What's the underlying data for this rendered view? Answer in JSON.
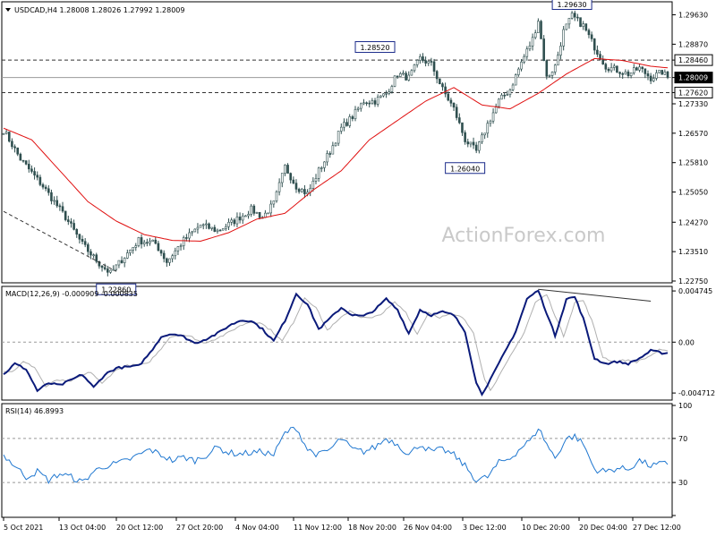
{
  "header": {
    "symbol_line": "USDCAD,H4  1.28008 1.28026 1.27992 1.28009",
    "macd_line": "MACD(12,26,9) -0.000909 -0.000835",
    "rsi_line": "RSI(14) 46.8993"
  },
  "watermark": "ActionForex.com",
  "colors": {
    "candle": "#2f4f4f",
    "ma": "#e01010",
    "macd": "#0a1a7a",
    "signal": "#b0b0b0",
    "grid_dash": "#808080",
    "axis": "#000000"
  },
  "chart_data": [
    {
      "type": "candlestick",
      "name": "price",
      "ylim": [
        1.2275,
        1.2992
      ],
      "y_ticks": [
        "1.29630",
        "1.28870",
        "1.28460",
        "1.28009",
        "1.27620",
        "1.27330",
        "1.26570",
        "1.25810",
        "1.25050",
        "1.24270",
        "1.23510",
        "1.22750"
      ],
      "current_price": "1.28009",
      "levels": [
        {
          "label": "1.28460",
          "value": 1.2846
        },
        {
          "label": "1.27620",
          "value": 1.2762
        }
      ],
      "annotations": [
        {
          "label": "1.22860",
          "value": 1.2286
        },
        {
          "label": "1.28520",
          "value": 1.2852
        },
        {
          "label": "1.26040",
          "value": 1.2604
        },
        {
          "label": "1.29630",
          "value": 1.2963
        }
      ],
      "anchors": [
        [
          0,
          1.2665
        ],
        [
          6,
          1.259
        ],
        [
          14,
          1.252
        ],
        [
          22,
          1.244
        ],
        [
          28,
          1.237
        ],
        [
          34,
          1.232
        ],
        [
          38,
          1.2295
        ],
        [
          42,
          1.233
        ],
        [
          48,
          1.238
        ],
        [
          54,
          1.2372
        ],
        [
          58,
          1.2325
        ],
        [
          64,
          1.238
        ],
        [
          70,
          1.242
        ],
        [
          76,
          1.2405
        ],
        [
          82,
          1.243
        ],
        [
          88,
          1.246
        ],
        [
          92,
          1.244
        ],
        [
          96,
          1.2475
        ],
        [
          100,
          1.257
        ],
        [
          104,
          1.252
        ],
        [
          108,
          1.25
        ],
        [
          112,
          1.256
        ],
        [
          116,
          1.261
        ],
        [
          120,
          1.267
        ],
        [
          124,
          1.27
        ],
        [
          128,
          1.274
        ],
        [
          132,
          1.274
        ],
        [
          136,
          1.276
        ],
        [
          140,
          1.281
        ],
        [
          144,
          1.28
        ],
        [
          148,
          1.285
        ],
        [
          152,
          1.2835
        ],
        [
          156,
          1.277
        ],
        [
          160,
          1.272
        ],
        [
          164,
          1.264
        ],
        [
          168,
          1.261
        ],
        [
          172,
          1.268
        ],
        [
          176,
          1.274
        ],
        [
          180,
          1.277
        ],
        [
          184,
          1.284
        ],
        [
          188,
          1.29
        ],
        [
          190,
          1.295
        ],
        [
          193,
          1.28
        ],
        [
          196,
          1.283
        ],
        [
          199,
          1.292
        ],
        [
          202,
          1.296
        ],
        [
          206,
          1.2935
        ],
        [
          210,
          1.288
        ],
        [
          214,
          1.283
        ],
        [
          218,
          1.282
        ],
        [
          222,
          1.281
        ],
        [
          226,
          1.2825
        ],
        [
          230,
          1.28
        ],
        [
          234,
          1.2815
        ],
        [
          236,
          1.2801
        ]
      ],
      "ma_anchors": [
        [
          0,
          1.267
        ],
        [
          10,
          1.264
        ],
        [
          20,
          1.256
        ],
        [
          30,
          1.248
        ],
        [
          40,
          1.243
        ],
        [
          50,
          1.2395
        ],
        [
          60,
          1.238
        ],
        [
          70,
          1.2378
        ],
        [
          80,
          1.24
        ],
        [
          90,
          1.2435
        ],
        [
          100,
          1.245
        ],
        [
          110,
          1.251
        ],
        [
          120,
          1.256
        ],
        [
          130,
          1.264
        ],
        [
          140,
          1.269
        ],
        [
          150,
          1.274
        ],
        [
          160,
          1.2775
        ],
        [
          170,
          1.273
        ],
        [
          180,
          1.272
        ],
        [
          190,
          1.276
        ],
        [
          200,
          1.281
        ],
        [
          210,
          1.285
        ],
        [
          220,
          1.2845
        ],
        [
          230,
          1.283
        ],
        [
          236,
          1.2826
        ]
      ],
      "trendline": {
        "from": [
          0,
          1.2455
        ],
        "to": [
          40,
          1.23
        ]
      }
    },
    {
      "type": "line",
      "name": "MACD(12,26,9)",
      "ylim": [
        -0.0052,
        0.005
      ],
      "y_ticks": [
        "0.004745",
        "0.00",
        "-0.004712"
      ],
      "macd_anchors": [
        [
          0,
          -0.003
        ],
        [
          4,
          -0.002
        ],
        [
          8,
          -0.0025
        ],
        [
          12,
          -0.0045
        ],
        [
          16,
          -0.0038
        ],
        [
          20,
          -0.004
        ],
        [
          24,
          -0.0035
        ],
        [
          28,
          -0.003
        ],
        [
          32,
          -0.0042
        ],
        [
          36,
          -0.003
        ],
        [
          40,
          -0.0024
        ],
        [
          44,
          -0.0023
        ],
        [
          48,
          -0.0022
        ],
        [
          52,
          -0.001
        ],
        [
          56,
          0.0005
        ],
        [
          60,
          0.0008
        ],
        [
          64,
          0.0005
        ],
        [
          68,
          -0.0001
        ],
        [
          72,
          0.0003
        ],
        [
          76,
          0.0008
        ],
        [
          80,
          0.0015
        ],
        [
          84,
          0.002
        ],
        [
          88,
          0.002
        ],
        [
          92,
          0.0012
        ],
        [
          96,
          0.0001
        ],
        [
          100,
          0.002
        ],
        [
          104,
          0.0045
        ],
        [
          108,
          0.0035
        ],
        [
          112,
          0.0012
        ],
        [
          116,
          0.0022
        ],
        [
          120,
          0.0032
        ],
        [
          124,
          0.0025
        ],
        [
          128,
          0.0024
        ],
        [
          132,
          0.003
        ],
        [
          136,
          0.004
        ],
        [
          140,
          0.003
        ],
        [
          144,
          0.0008
        ],
        [
          148,
          0.003
        ],
        [
          152,
          0.0025
        ],
        [
          156,
          0.0028
        ],
        [
          160,
          0.0025
        ],
        [
          164,
          0.001
        ],
        [
          168,
          -0.0038
        ],
        [
          170,
          -0.0048
        ],
        [
          174,
          -0.003
        ],
        [
          178,
          -0.001
        ],
        [
          182,
          0.001
        ],
        [
          186,
          0.004
        ],
        [
          190,
          0.0048
        ],
        [
          194,
          0.002
        ],
        [
          196,
          0.0006
        ],
        [
          200,
          0.004
        ],
        [
          203,
          0.0042
        ],
        [
          206,
          0.0022
        ],
        [
          210,
          -0.0015
        ],
        [
          214,
          -0.002
        ],
        [
          218,
          -0.0018
        ],
        [
          222,
          -0.002
        ],
        [
          226,
          -0.0015
        ],
        [
          230,
          -0.0008
        ],
        [
          234,
          -0.001
        ]
      ],
      "signal_lag": 3,
      "divergence_line": {
        "from": [
          190,
          0.0049
        ],
        "to": [
          230,
          0.0038
        ]
      }
    },
    {
      "type": "line",
      "name": "RSI(14)",
      "ylim": [
        0,
        100
      ],
      "y_ticks": [
        "100",
        "70",
        "30",
        "0"
      ],
      "levels": [
        70,
        30
      ],
      "rsi_anchors": [
        [
          0,
          55
        ],
        [
          4,
          45
        ],
        [
          8,
          35
        ],
        [
          12,
          40
        ],
        [
          16,
          32
        ],
        [
          20,
          38
        ],
        [
          24,
          35
        ],
        [
          28,
          30
        ],
        [
          32,
          40
        ],
        [
          36,
          45
        ],
        [
          40,
          47
        ],
        [
          44,
          50
        ],
        [
          48,
          55
        ],
        [
          52,
          60
        ],
        [
          56,
          55
        ],
        [
          60,
          50
        ],
        [
          64,
          53
        ],
        [
          68,
          50
        ],
        [
          72,
          55
        ],
        [
          76,
          62
        ],
        [
          80,
          57
        ],
        [
          84,
          56
        ],
        [
          88,
          57
        ],
        [
          92,
          58
        ],
        [
          96,
          55
        ],
        [
          100,
          75
        ],
        [
          104,
          80
        ],
        [
          108,
          60
        ],
        [
          112,
          55
        ],
        [
          116,
          60
        ],
        [
          120,
          70
        ],
        [
          124,
          60
        ],
        [
          128,
          58
        ],
        [
          132,
          62
        ],
        [
          136,
          70
        ],
        [
          140,
          65
        ],
        [
          144,
          55
        ],
        [
          148,
          65
        ],
        [
          152,
          58
        ],
        [
          156,
          60
        ],
        [
          160,
          55
        ],
        [
          164,
          45
        ],
        [
          168,
          32
        ],
        [
          172,
          35
        ],
        [
          176,
          48
        ],
        [
          180,
          52
        ],
        [
          184,
          62
        ],
        [
          188,
          70
        ],
        [
          190,
          80
        ],
        [
          193,
          65
        ],
        [
          196,
          52
        ],
        [
          200,
          70
        ],
        [
          203,
          72
        ],
        [
          206,
          65
        ],
        [
          210,
          42
        ],
        [
          214,
          40
        ],
        [
          218,
          43
        ],
        [
          222,
          42
        ],
        [
          226,
          50
        ],
        [
          230,
          45
        ],
        [
          234,
          47
        ],
        [
          236,
          46.9
        ]
      ]
    }
  ],
  "x_labels": [
    "5 Oct 2021",
    "13 Oct 04:00",
    "20 Oct 12:00",
    "27 Oct 20:00",
    "4 Nov 04:00",
    "11 Nov 12:00",
    "18 Nov 20:00",
    "26 Nov 04:00",
    "3 Dec 12:00",
    "10 Dec 20:00",
    "20 Dec 04:00",
    "27 Dec 12:00"
  ]
}
